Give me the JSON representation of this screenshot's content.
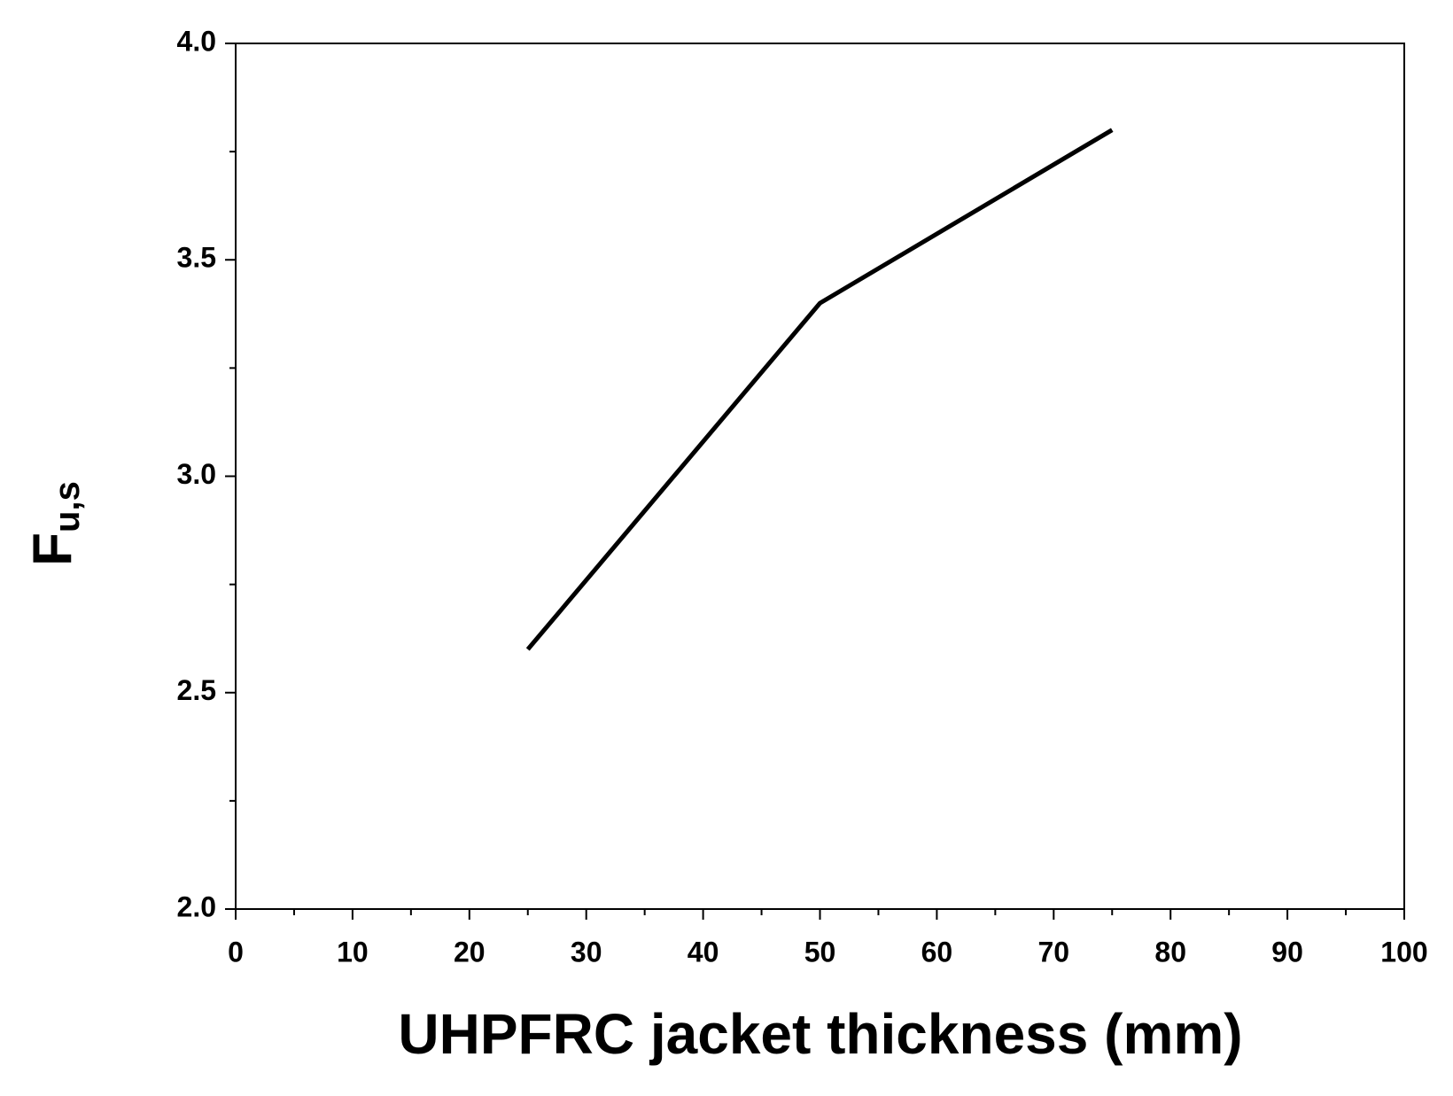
{
  "chart_data": {
    "type": "line",
    "xlabel": "UHPFRC jacket thickness (mm)",
    "ylabel": {
      "main": "F",
      "sub": "u,s"
    },
    "series": [
      {
        "color": "#000000",
        "x": [
          25,
          50,
          75
        ],
        "values": [
          2.6,
          3.4,
          3.8
        ]
      }
    ],
    "xlim": [
      0,
      100
    ],
    "xticks": [
      0,
      10,
      20,
      30,
      40,
      50,
      60,
      70,
      80,
      90,
      100
    ],
    "xminorticks": [
      5,
      15,
      25,
      35,
      45,
      55,
      65,
      75,
      85,
      95
    ],
    "ylim": [
      2,
      4
    ],
    "yticks": [
      {
        "value": 2,
        "label": "2.0"
      },
      {
        "value": 2.5,
        "label": "2.5"
      },
      {
        "value": 3,
        "label": "3.0"
      },
      {
        "value": 3.5,
        "label": "3.5"
      },
      {
        "value": 4,
        "label": "4.0"
      }
    ],
    "yminorticks": [
      2.25,
      2.75,
      3.25,
      3.75
    ],
    "grid": false
  }
}
